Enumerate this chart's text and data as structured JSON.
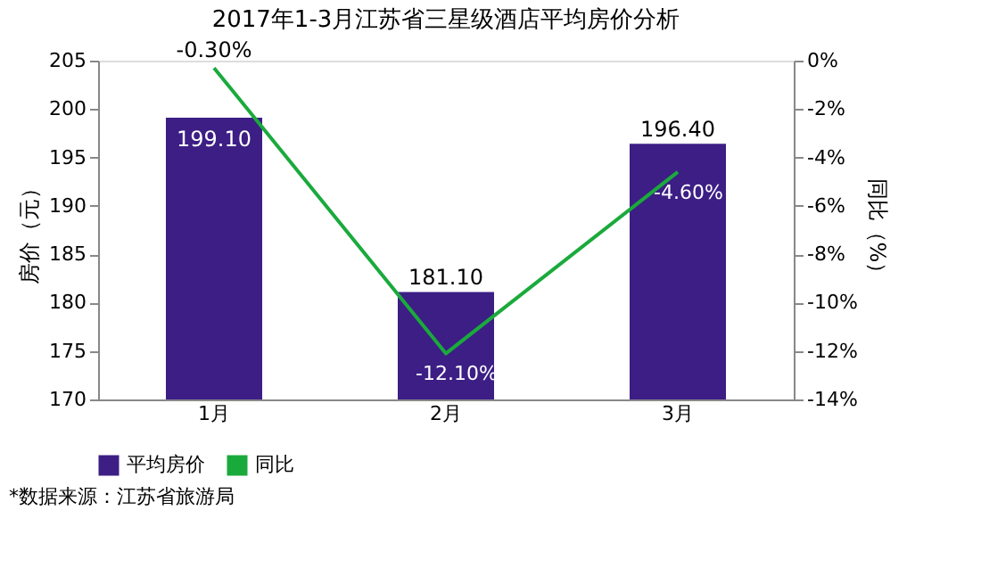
{
  "chart_data": {
    "type": "bar",
    "title": "2017年1-3月江苏省三星级酒店平均房价分析",
    "categories": [
      "1月",
      "2月",
      "3月"
    ],
    "series": [
      {
        "name": "平均房价",
        "color": "#3c1e85",
        "values": [
          199.1,
          181.1,
          196.4
        ],
        "value_labels": [
          "199.10",
          "181.10",
          "196.40"
        ]
      },
      {
        "name": "同比",
        "type": "line",
        "axis": "y2",
        "color": "#1aaa3c",
        "values": [
          -0.3,
          -12.1,
          -4.6
        ],
        "value_labels": [
          "-0.30%",
          "-12.10%",
          "-4.60%"
        ]
      }
    ],
    "ylabel": "房价（元）",
    "y2label": "同比（%）",
    "ylim": [
      170,
      205
    ],
    "yticks": [
      170,
      175,
      180,
      185,
      190,
      195,
      200,
      205
    ],
    "y2lim": [
      -14,
      0
    ],
    "y2ticks": [
      {
        "value": -14,
        "label": "-14%"
      },
      {
        "value": -12,
        "label": "-12%"
      },
      {
        "value": -10,
        "label": "-10%"
      },
      {
        "value": -8,
        "label": "-8%"
      },
      {
        "value": -6,
        "label": "-6%"
      },
      {
        "value": -4,
        "label": "-4%"
      },
      {
        "value": -2,
        "label": "-2%"
      },
      {
        "value": 0,
        "label": "0%"
      }
    ],
    "legend": "bottom",
    "grid": false,
    "marker": "none",
    "annotations": [
      "*数据来源：江苏省旅游局"
    ]
  }
}
